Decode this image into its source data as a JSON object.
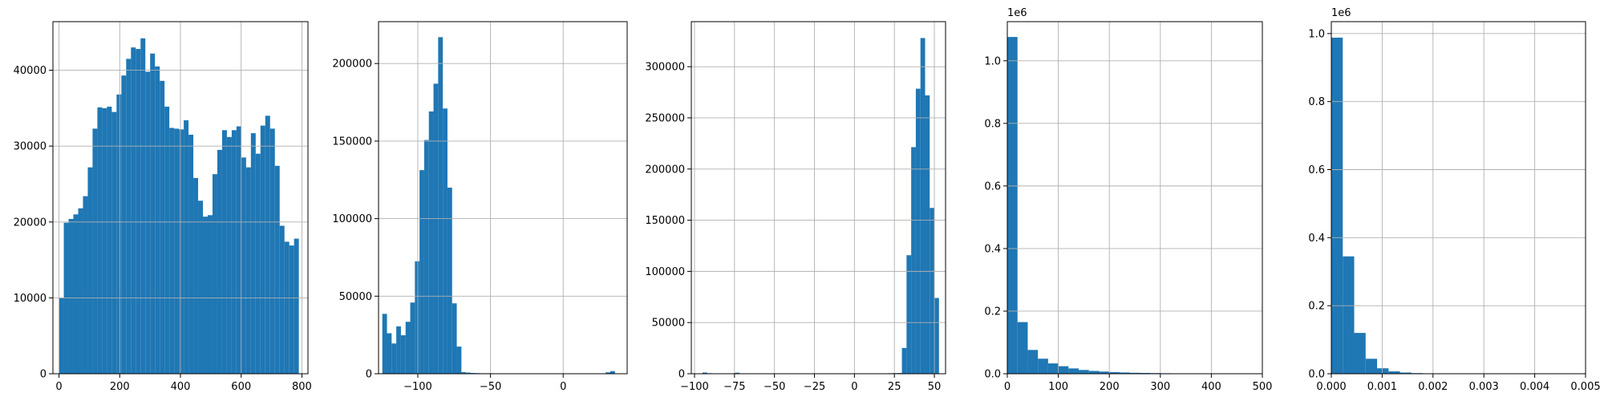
{
  "colors": {
    "bar": "#1f77b4",
    "grid": "#b0b0b0",
    "axis": "#000000"
  },
  "chart_data": [
    {
      "type": "bar",
      "title": "",
      "xlabel": "",
      "ylabel": "",
      "xlim": [
        -20,
        820
      ],
      "ylim": [
        0,
        46400
      ],
      "grid": true,
      "xticks": [
        0,
        200,
        400,
        600,
        800
      ],
      "xtick_labels": [
        "0",
        "200",
        "400",
        "600",
        "800"
      ],
      "yticks": [
        0,
        10000,
        20000,
        30000,
        40000
      ],
      "ytick_labels": [
        "0",
        "10000",
        "20000",
        "30000",
        "40000"
      ],
      "offset_label": "",
      "bin_start": 0,
      "bin_width": 15.8,
      "values": [
        10000,
        19900,
        20400,
        21000,
        21800,
        23400,
        27200,
        32300,
        35100,
        35000,
        35200,
        34500,
        36800,
        39300,
        41500,
        43000,
        42800,
        44200,
        39800,
        42200,
        40500,
        38600,
        35200,
        32400,
        32300,
        32200,
        33400,
        31500,
        25800,
        22800,
        20700,
        20900,
        26300,
        29500,
        32100,
        31200,
        32100,
        32600,
        28500,
        27200,
        31700,
        29000,
        32700,
        34000,
        32300,
        27400,
        19500,
        17400,
        16900,
        17800
      ]
    },
    {
      "type": "bar",
      "title": "",
      "xlabel": "",
      "ylabel": "",
      "xlim": [
        -127,
        44
      ],
      "ylim": [
        0,
        227000
      ],
      "grid": true,
      "xticks": [
        -100,
        -50,
        0
      ],
      "xtick_labels": [
        "−100",
        "−50",
        "0"
      ],
      "yticks": [
        0,
        50000,
        100000,
        150000,
        200000
      ],
      "ytick_labels": [
        "0",
        "50000",
        "100000",
        "150000",
        "200000"
      ],
      "offset_label": "",
      "bin_start": -124.4,
      "bin_width": 3.2,
      "values": [
        38600,
        26100,
        19500,
        30500,
        24800,
        33500,
        45900,
        72500,
        131300,
        150700,
        169100,
        187000,
        217000,
        171000,
        120000,
        45400,
        17500,
        1000,
        700,
        500,
        400,
        300,
        300,
        300,
        200,
        200,
        200,
        200,
        200,
        200,
        200,
        200,
        200,
        200,
        200,
        200,
        200,
        200,
        200,
        200,
        200,
        200,
        200,
        200,
        200,
        200,
        200,
        200,
        900,
        1700
      ]
    },
    {
      "type": "bar",
      "title": "",
      "xlabel": "",
      "ylabel": "",
      "xlim": [
        -102,
        57
      ],
      "ylim": [
        0,
        344000
      ],
      "grid": true,
      "xticks": [
        -100,
        -75,
        -50,
        -25,
        0,
        25,
        50
      ],
      "xtick_labels": [
        "−100",
        "−75",
        "−50",
        "−25",
        "0",
        "25",
        "50"
      ],
      "yticks": [
        0,
        50000,
        100000,
        150000,
        200000,
        250000,
        300000
      ],
      "ytick_labels": [
        "0",
        "50000",
        "100000",
        "150000",
        "200000",
        "250000",
        "300000"
      ],
      "offset_label": "",
      "bin_start": -95,
      "bin_width": 2.9,
      "values": [
        1200,
        500,
        300,
        300,
        200,
        200,
        200,
        1000,
        300,
        300,
        200,
        200,
        200,
        200,
        200,
        200,
        200,
        200,
        200,
        200,
        200,
        200,
        200,
        200,
        200,
        200,
        200,
        200,
        200,
        200,
        200,
        200,
        200,
        200,
        200,
        200,
        200,
        200,
        200,
        200,
        500,
        600,
        700,
        25200,
        115800,
        221400,
        278500,
        328000,
        272000,
        162000,
        74000
      ]
    },
    {
      "type": "bar",
      "title": "",
      "xlabel": "",
      "ylabel": "",
      "xlim": [
        0,
        500
      ],
      "ylim": [
        0,
        1125000
      ],
      "grid": true,
      "xticks": [
        0,
        100,
        200,
        300,
        400,
        500
      ],
      "xtick_labels": [
        "0",
        "100",
        "200",
        "300",
        "400",
        "500"
      ],
      "yticks": [
        0,
        200000,
        400000,
        600000,
        800000,
        1000000
      ],
      "ytick_labels": [
        "0.0",
        "0.2",
        "0.4",
        "0.6",
        "0.8",
        "1.0"
      ],
      "offset_label": "1e6",
      "bin_start": 0,
      "bin_width": 20,
      "values": [
        1076000,
        165000,
        76000,
        48000,
        33000,
        24000,
        17000,
        12000,
        9000,
        7000,
        5000,
        4000,
        3000,
        2500,
        2000,
        1500,
        1200,
        1000,
        800,
        600,
        500,
        400,
        300,
        200,
        100
      ]
    },
    {
      "type": "bar",
      "title": "",
      "xlabel": "",
      "ylabel": "",
      "xlim": [
        0,
        0.005
      ],
      "ylim": [
        0,
        1035000
      ],
      "grid": true,
      "xticks": [
        0,
        0.001,
        0.002,
        0.003,
        0.004,
        0.005
      ],
      "xtick_labels": [
        "0.000",
        "0.001",
        "0.002",
        "0.003",
        "0.004",
        "0.005"
      ],
      "yticks": [
        0,
        200000,
        400000,
        600000,
        800000,
        1000000
      ],
      "ytick_labels": [
        "0.0",
        "0.2",
        "0.4",
        "0.6",
        "0.8",
        "1.0"
      ],
      "offset_label": "1e6",
      "bin_start": 0,
      "bin_width": 0.000225,
      "values": [
        988000,
        345000,
        120000,
        44000,
        16000,
        7000,
        3500,
        1800,
        900,
        500,
        300,
        200,
        100,
        100,
        100,
        50,
        50,
        50,
        50,
        50,
        50,
        50
      ]
    }
  ]
}
